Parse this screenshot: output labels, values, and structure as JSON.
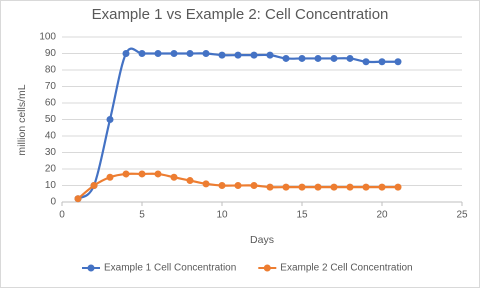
{
  "chart_data": {
    "type": "scatter",
    "title": "Example 1 vs Example 2: Cell Concentration",
    "x_label": "Days",
    "y_label": "million cells/mL",
    "x": [
      1,
      2,
      3,
      4,
      5,
      6,
      7,
      8,
      9,
      10,
      11,
      12,
      13,
      14,
      15,
      16,
      17,
      18,
      19,
      20,
      21
    ],
    "series": [
      {
        "name": "Example 1 Cell Concentration",
        "color": "#4472c4",
        "values": [
          2,
          10,
          50,
          90,
          90,
          90,
          90,
          90,
          90,
          89,
          89,
          89,
          89,
          87,
          87,
          87,
          87,
          87,
          85,
          85,
          85
        ]
      },
      {
        "name": "Example 2 Cell Concentration",
        "color": "#ed7d31",
        "values": [
          2,
          10,
          15,
          17,
          17,
          17,
          15,
          13,
          11,
          10,
          10,
          10,
          9,
          9,
          9,
          9,
          9,
          9,
          9,
          9,
          9
        ]
      }
    ],
    "xlim": [
      0,
      25
    ],
    "xticks": [
      0,
      5,
      10,
      15,
      20,
      25
    ],
    "ylim": [
      0,
      100
    ],
    "yticks": [
      0,
      10,
      20,
      30,
      40,
      50,
      60,
      70,
      80,
      90,
      100
    ],
    "grid": true,
    "smooth": true,
    "legend": "bottom"
  }
}
